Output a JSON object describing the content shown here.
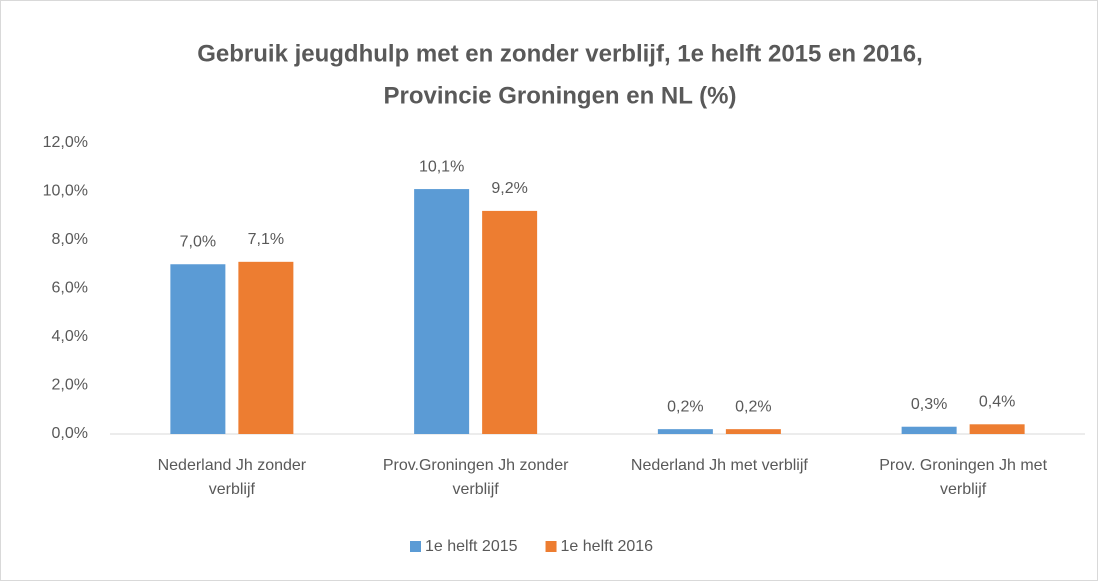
{
  "chart_data": {
    "type": "bar",
    "title": [
      "Gebruik jeugdhulp met en zonder verblijf, 1e helft 2015 en 2016,",
      "Provincie Groningen en NL (%)"
    ],
    "categories": [
      "Nederland Jh zonder verblijf",
      "Prov.Groningen Jh zonder verblijf",
      "Nederland Jh met verblijf",
      "Prov. Groningen Jh met verblijf"
    ],
    "series": [
      {
        "name": "1e helft 2015",
        "color": "#5b9bd5",
        "values": [
          7.0,
          10.1,
          0.2,
          0.3
        ],
        "value_labels": [
          "7,0%",
          "10,1%",
          "0,2%",
          "0,3%"
        ]
      },
      {
        "name": "1e helft 2016",
        "color": "#ed7d31",
        "values": [
          7.1,
          9.2,
          0.2,
          0.4
        ],
        "value_labels": [
          "7,1%",
          "9,2%",
          "0,2%",
          "0,4%"
        ]
      }
    ],
    "ylim": [
      0,
      12
    ],
    "yticks": [
      {
        "value": 0,
        "label": "0,0%"
      },
      {
        "value": 2,
        "label": "2,0%"
      },
      {
        "value": 4,
        "label": "4,0%"
      },
      {
        "value": 6,
        "label": "6,0%"
      },
      {
        "value": 8,
        "label": "8,0%"
      },
      {
        "value": 10,
        "label": "10,0%"
      },
      {
        "value": 12,
        "label": "12,0%"
      }
    ],
    "grid": false,
    "legend": "bottom"
  }
}
